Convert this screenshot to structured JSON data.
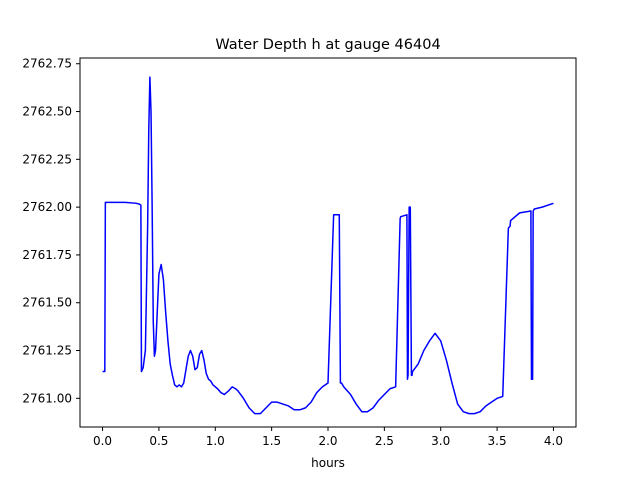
{
  "chart_data": {
    "type": "line",
    "title": "Water Depth h at gauge 46404",
    "xlabel": "hours",
    "ylabel": "",
    "xlim": [
      -0.2,
      4.2
    ],
    "ylim": [
      2760.85,
      2762.78
    ],
    "xticks": [
      0.0,
      0.5,
      1.0,
      1.5,
      2.0,
      2.5,
      3.0,
      3.5,
      4.0
    ],
    "xtick_labels": [
      "0.0",
      "0.5",
      "1.0",
      "1.5",
      "2.0",
      "2.5",
      "3.0",
      "3.5",
      "4.0"
    ],
    "yticks": [
      2761.0,
      2761.25,
      2761.5,
      2761.75,
      2762.0,
      2762.25,
      2762.5,
      2762.75
    ],
    "ytick_labels": [
      "2761.00",
      "2761.25",
      "2761.50",
      "2761.75",
      "2762.00",
      "2762.25",
      "2762.50",
      "2762.75"
    ],
    "grid": false,
    "series": [
      {
        "color": "#0000ff",
        "x": [
          0.0,
          0.02,
          0.025,
          0.1,
          0.2,
          0.3,
          0.33,
          0.34,
          0.345,
          0.36,
          0.38,
          0.4,
          0.41,
          0.42,
          0.43,
          0.44,
          0.45,
          0.46,
          0.47,
          0.48,
          0.5,
          0.52,
          0.54,
          0.56,
          0.58,
          0.6,
          0.62,
          0.64,
          0.66,
          0.68,
          0.7,
          0.72,
          0.74,
          0.76,
          0.78,
          0.8,
          0.82,
          0.84,
          0.86,
          0.88,
          0.9,
          0.92,
          0.94,
          0.96,
          0.98,
          1.0,
          1.02,
          1.05,
          1.08,
          1.1,
          1.12,
          1.15,
          1.18,
          1.2,
          1.25,
          1.3,
          1.35,
          1.4,
          1.45,
          1.5,
          1.55,
          1.6,
          1.65,
          1.7,
          1.75,
          1.8,
          1.85,
          1.9,
          1.95,
          2.0,
          2.05,
          2.1,
          2.11,
          2.115,
          2.12,
          2.13,
          2.14,
          2.2,
          2.25,
          2.3,
          2.35,
          2.4,
          2.45,
          2.5,
          2.55,
          2.6,
          2.64,
          2.645,
          2.7,
          2.705,
          2.71,
          2.72,
          2.73,
          2.74,
          2.745,
          2.75,
          2.8,
          2.85,
          2.9,
          2.95,
          3.0,
          3.05,
          3.1,
          3.15,
          3.2,
          3.25,
          3.3,
          3.35,
          3.4,
          3.45,
          3.5,
          3.55,
          3.6,
          3.615,
          3.62,
          3.7,
          3.8,
          3.805,
          3.81,
          3.815,
          3.82,
          3.83,
          3.9,
          4.0
        ],
        "y": [
          2761.14,
          2761.14,
          2762.025,
          2762.025,
          2762.025,
          2762.02,
          2762.015,
          2762.01,
          2761.14,
          2761.16,
          2761.25,
          2761.9,
          2762.4,
          2762.68,
          2762.5,
          2762.0,
          2761.4,
          2761.22,
          2761.25,
          2761.38,
          2761.65,
          2761.7,
          2761.62,
          2761.45,
          2761.3,
          2761.18,
          2761.12,
          2761.07,
          2761.06,
          2761.07,
          2761.06,
          2761.08,
          2761.15,
          2761.22,
          2761.25,
          2761.22,
          2761.15,
          2761.16,
          2761.23,
          2761.25,
          2761.2,
          2761.13,
          2761.1,
          2761.09,
          2761.07,
          2761.06,
          2761.05,
          2761.03,
          2761.02,
          2761.03,
          2761.04,
          2761.06,
          2761.05,
          2761.04,
          2761.0,
          2760.95,
          2760.92,
          2760.92,
          2760.95,
          2760.98,
          2760.98,
          2760.97,
          2760.96,
          2760.94,
          2760.94,
          2760.95,
          2760.98,
          2761.03,
          2761.06,
          2761.08,
          2761.96,
          2761.96,
          2761.08,
          2761.08,
          2761.08,
          2761.07,
          2761.06,
          2761.02,
          2760.97,
          2760.93,
          2760.93,
          2760.95,
          2760.99,
          2761.02,
          2761.05,
          2761.06,
          2761.94,
          2761.95,
          2761.96,
          2761.1,
          2761.12,
          2762.0,
          2762.0,
          2761.12,
          2761.12,
          2761.14,
          2761.18,
          2761.25,
          2761.3,
          2761.34,
          2761.3,
          2761.2,
          2761.08,
          2760.97,
          2760.93,
          2760.92,
          2760.92,
          2760.93,
          2760.96,
          2760.98,
          2761.0,
          2761.01,
          2761.89,
          2761.9,
          2761.93,
          2761.97,
          2761.98,
          2761.1,
          2761.1,
          2761.1,
          2761.98,
          2761.99,
          2762.0,
          2762.02
        ]
      }
    ]
  }
}
